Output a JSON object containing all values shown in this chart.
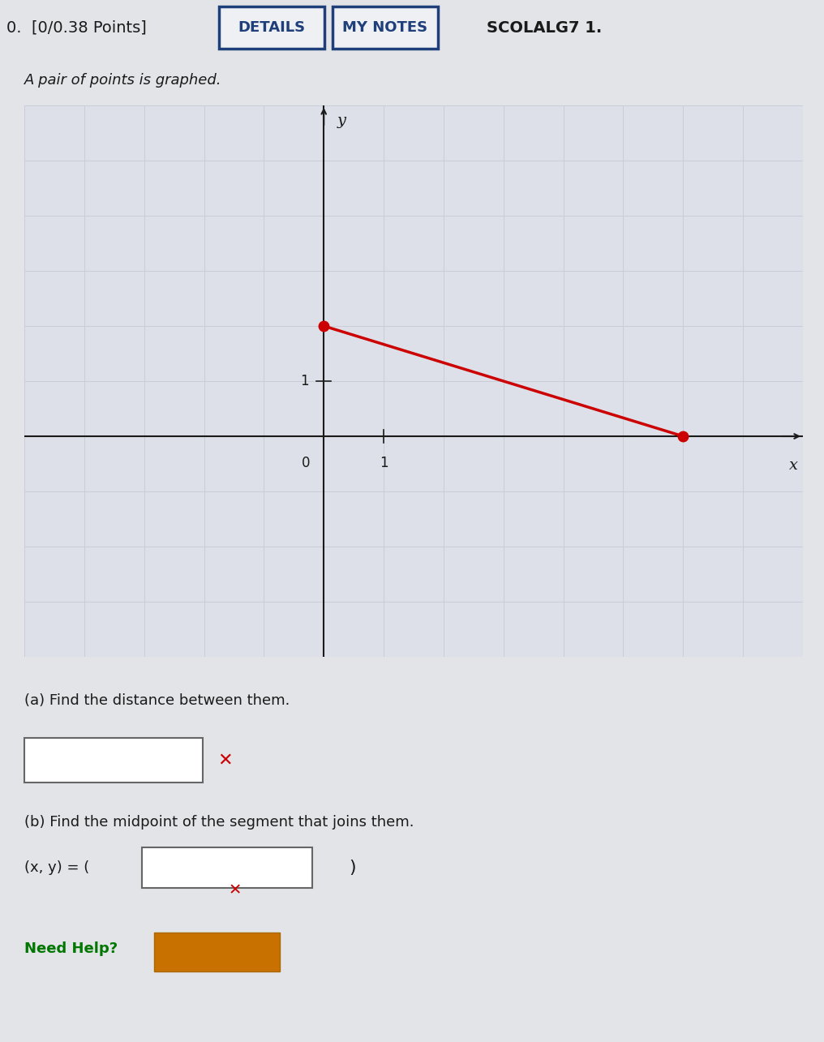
{
  "bg_color": "#e2e4e8",
  "header_text": "0.  [0/0.38 Points]",
  "btn1_text": "DETAILS",
  "btn2_text": "MY NOTES",
  "header_right": "SCOLALG7 1.",
  "problem_text": "A pair of points is graphed.",
  "point1": [
    0,
    2
  ],
  "point2": [
    6,
    0
  ],
  "line_color": "#cc0000",
  "point_color": "#cc0000",
  "axis_xlim": [
    -5,
    8
  ],
  "axis_ylim": [
    -4,
    6
  ],
  "grid_color_major": "#c8cdd8",
  "grid_color_minor": "#d8dce4",
  "axis_color": "#1a1a1a",
  "part_a_label": "(a) Find the distance between them.",
  "part_b_label": "(b) Find the midpoint of the segment that joins them.",
  "part_b2_text": "(x, y) = (",
  "need_help_text": "Need Help?",
  "plot_bg": "#dde0e8",
  "btn_edge_color": "#1e3f7a",
  "btn_face_color": "#eef0f4",
  "btn_text_color": "#1e3f7a",
  "header_right_color": "#1a1a1a"
}
